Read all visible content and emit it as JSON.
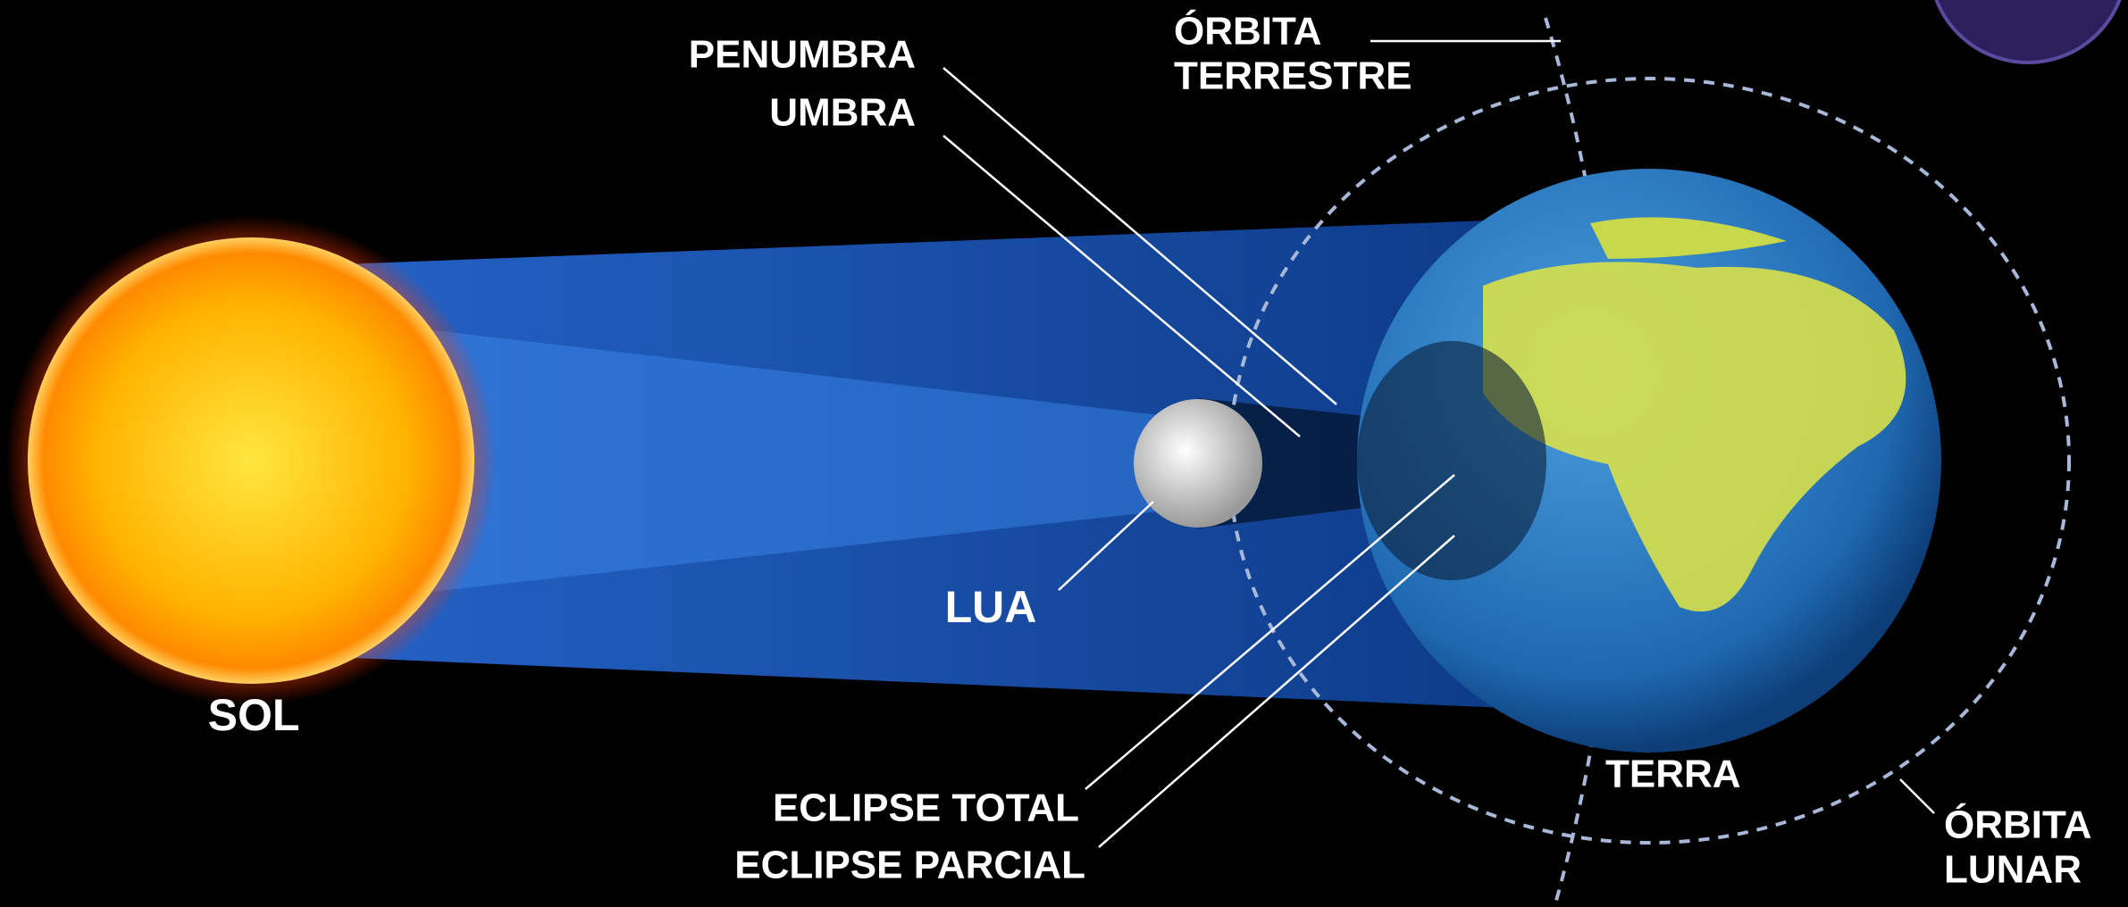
{
  "labels": {
    "penumbra": "PENUMBRA",
    "umbra": "UMBRA",
    "earth_orbit": [
      "ÓRBITA",
      "TERRESTRE"
    ],
    "moon": "LUA",
    "sun": "SOL",
    "earth": "TERRA",
    "total_eclipse": "ECLIPSE TOTAL",
    "partial_eclipse": "ECLIPSE PARCIAL",
    "lunar_orbit": [
      "ÓRBITA",
      "LUNAR"
    ]
  }
}
